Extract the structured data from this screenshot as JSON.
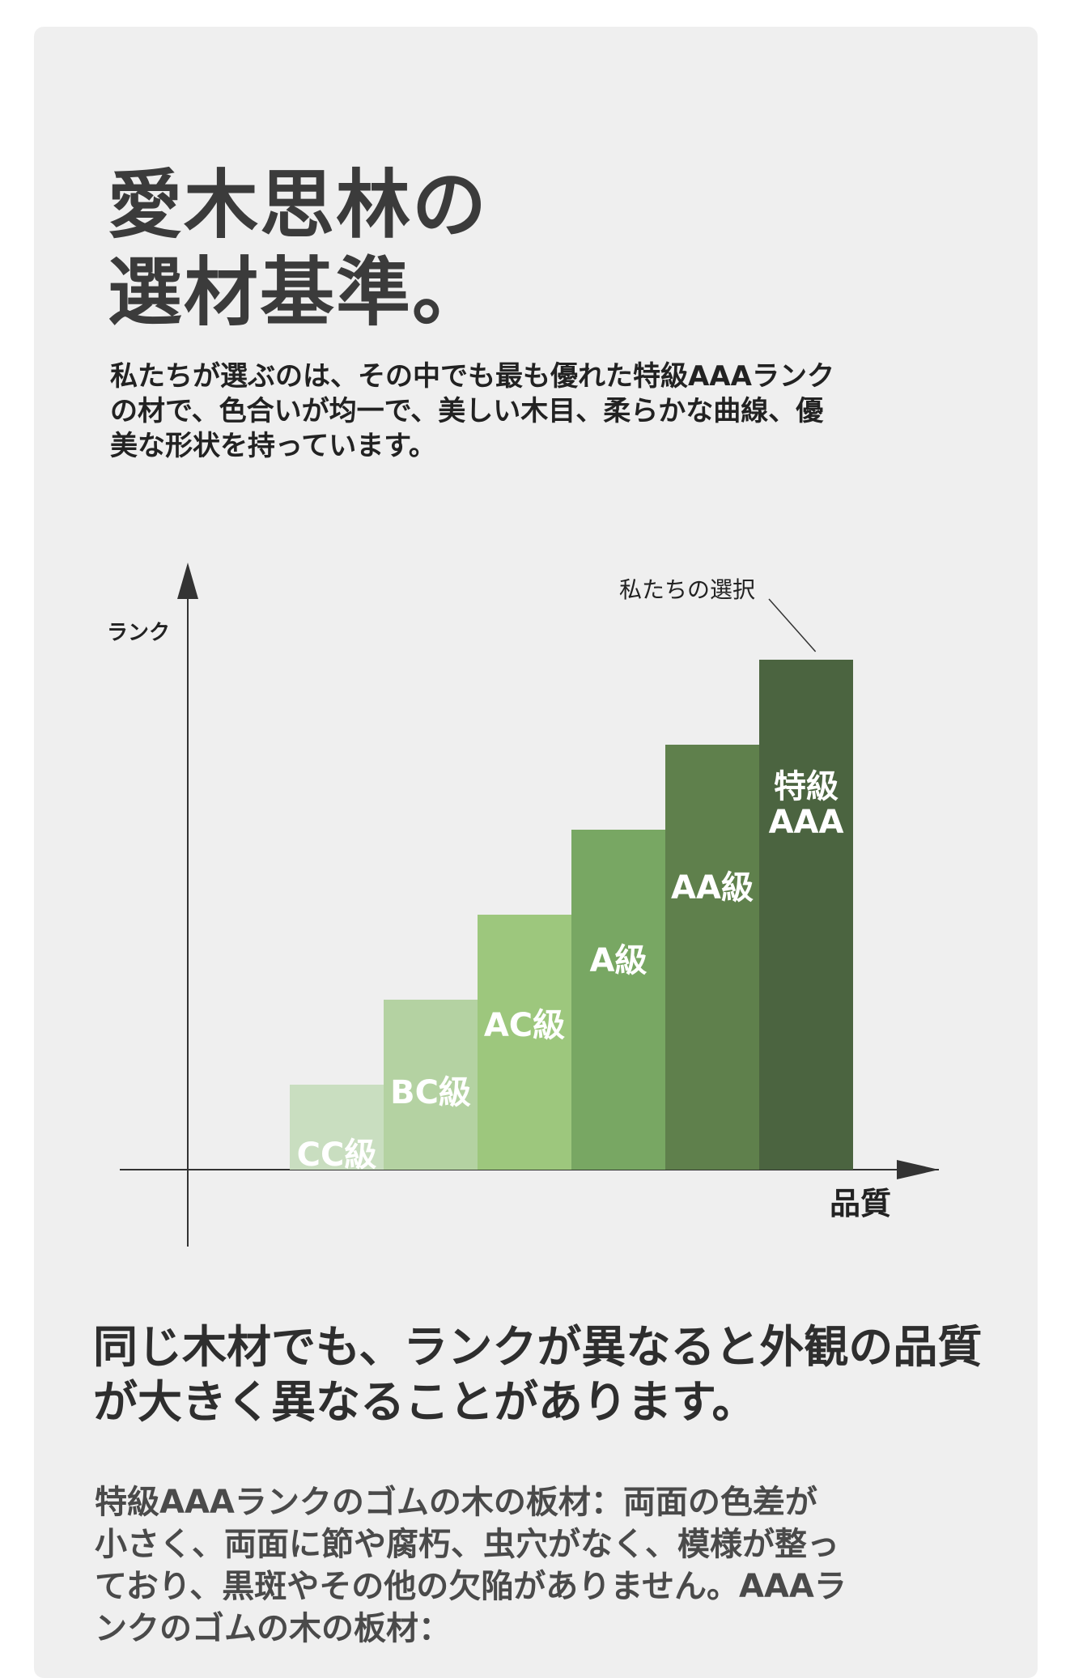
{
  "heading": {
    "line1": "愛木思林の",
    "line2": "選材基準。"
  },
  "intro": "私たちが選ぶのは、その中でも最も優れた特級AAAランクの材で、色合いが均一で、美しい木目、柔らかな曲線、優美な形状を持っています。",
  "chart_data": {
    "type": "bar",
    "ylabel": "ランク",
    "xlabel": "品質",
    "annotation": "私たちの選択",
    "categories": [
      "CC級",
      "BC級",
      "AC級",
      "A級",
      "AA級",
      "特級AAA"
    ],
    "values": [
      1,
      2,
      3,
      4,
      5,
      6
    ],
    "colors": [
      "#c9dec0",
      "#b4d2a2",
      "#9dc77d",
      "#78a763",
      "#5f804c",
      "#4b6440"
    ],
    "label_colors": [
      "#ffffff",
      "#ffffff",
      "#ffffff",
      "#ffffff",
      "#ffffff",
      "#ffffff"
    ]
  },
  "section2": {
    "heading": "同じ木材でも、ランクが異なると外観の品質が大きく異なることがあります。",
    "body": "特級AAAランクのゴムの木の板材：両面の色差が小さく、両面に節や腐朽、虫穴がなく、模様が整っており、黒斑やその他の欠陥がありません。AAAランクのゴムの木の板材："
  }
}
